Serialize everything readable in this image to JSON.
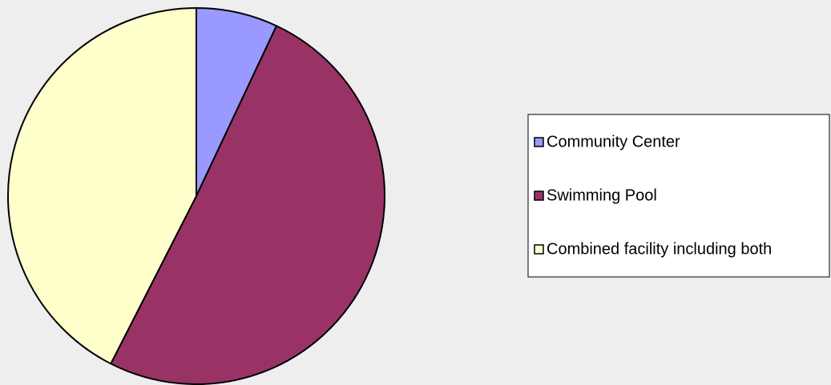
{
  "chart_data": {
    "type": "pie",
    "categories": [
      "Community Center",
      "Swimming Pool",
      "Combined facility including both"
    ],
    "values": [
      7,
      50.5,
      42.5
    ],
    "colors": [
      "#9999ff",
      "#993366",
      "#ffffcc"
    ],
    "legend": "right"
  }
}
